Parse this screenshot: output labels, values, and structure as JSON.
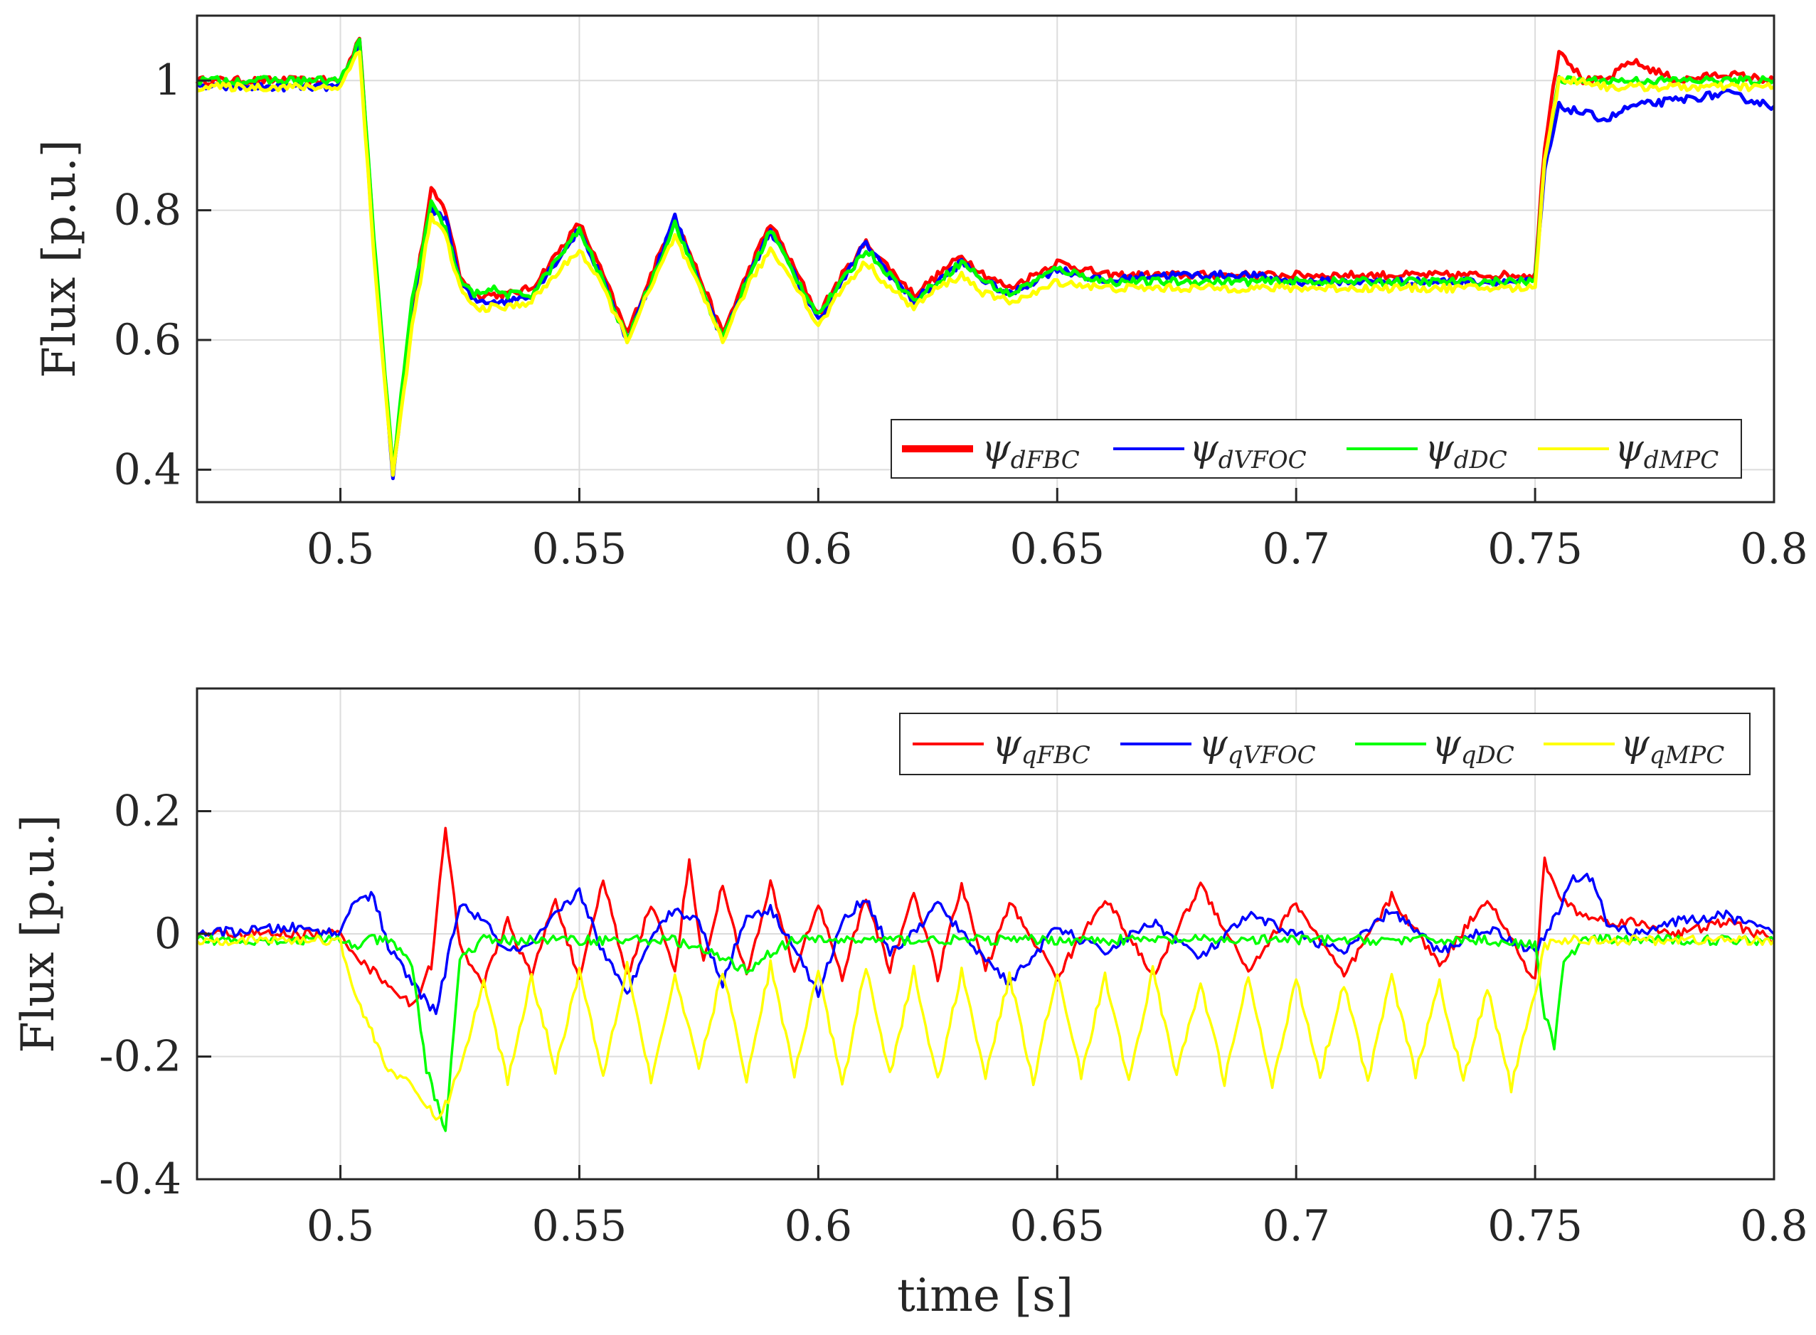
{
  "chart_data": [
    {
      "type": "line",
      "panel": "top",
      "title": "",
      "xlabel": "",
      "ylabel": "Flux [p.u.]",
      "xlim": [
        0.47,
        0.8
      ],
      "ylim": [
        0.35,
        1.1
      ],
      "xticks": [
        0.5,
        0.55,
        0.6,
        0.65,
        0.7,
        0.75,
        0.8
      ],
      "xtick_labels": [
        "0.5",
        "0.55",
        "0.6",
        "0.65",
        "0.7",
        "0.75",
        "0.8"
      ],
      "yticks": [
        0.4,
        0.6,
        0.8,
        1.0
      ],
      "ytick_labels": [
        "0.4",
        "0.6",
        "0.8",
        "1"
      ],
      "grid": true,
      "legend_position": "bottom-right",
      "series": [
        {
          "name": "ψdFBC",
          "sym": "ψ",
          "sub": "dFBC",
          "color": "#ff0000",
          "legend_width": "thick",
          "x": [
            0.47,
            0.49,
            0.5,
            0.502,
            0.504,
            0.507,
            0.511,
            0.515,
            0.519,
            0.522,
            0.525,
            0.528,
            0.531,
            0.535,
            0.54,
            0.545,
            0.55,
            0.555,
            0.56,
            0.565,
            0.57,
            0.575,
            0.58,
            0.585,
            0.59,
            0.595,
            0.6,
            0.605,
            0.61,
            0.615,
            0.62,
            0.625,
            0.63,
            0.635,
            0.64,
            0.645,
            0.65,
            0.66,
            0.67,
            0.68,
            0.69,
            0.7,
            0.72,
            0.74,
            0.75,
            0.752,
            0.755,
            0.76,
            0.765,
            0.77,
            0.78,
            0.79,
            0.8
          ],
          "y": [
            1.0,
            1.0,
            1.0,
            1.03,
            1.07,
            0.75,
            0.4,
            0.65,
            0.83,
            0.8,
            0.7,
            0.67,
            0.67,
            0.67,
            0.68,
            0.73,
            0.78,
            0.7,
            0.61,
            0.7,
            0.79,
            0.7,
            0.61,
            0.7,
            0.78,
            0.71,
            0.64,
            0.7,
            0.75,
            0.71,
            0.67,
            0.7,
            0.73,
            0.7,
            0.68,
            0.7,
            0.72,
            0.7,
            0.7,
            0.7,
            0.7,
            0.7,
            0.7,
            0.7,
            0.7,
            0.9,
            1.05,
            1.0,
            1.0,
            1.03,
            1.0,
            1.01,
            1.0
          ]
        },
        {
          "name": "ψdVFOC",
          "sym": "ψ",
          "sub": "dVFOC",
          "color": "#0000ff",
          "legend_width": "thin",
          "x": [
            0.47,
            0.49,
            0.5,
            0.502,
            0.504,
            0.507,
            0.511,
            0.515,
            0.519,
            0.522,
            0.525,
            0.528,
            0.531,
            0.535,
            0.54,
            0.545,
            0.55,
            0.555,
            0.56,
            0.565,
            0.57,
            0.575,
            0.58,
            0.585,
            0.59,
            0.595,
            0.6,
            0.605,
            0.61,
            0.615,
            0.62,
            0.625,
            0.63,
            0.635,
            0.64,
            0.645,
            0.65,
            0.66,
            0.67,
            0.68,
            0.69,
            0.7,
            0.72,
            0.74,
            0.75,
            0.752,
            0.755,
            0.76,
            0.765,
            0.77,
            0.78,
            0.79,
            0.8
          ],
          "y": [
            0.99,
            0.99,
            0.99,
            1.02,
            1.06,
            0.74,
            0.39,
            0.63,
            0.8,
            0.79,
            0.69,
            0.66,
            0.66,
            0.66,
            0.67,
            0.72,
            0.77,
            0.69,
            0.6,
            0.69,
            0.79,
            0.69,
            0.6,
            0.69,
            0.77,
            0.7,
            0.63,
            0.69,
            0.75,
            0.7,
            0.66,
            0.69,
            0.72,
            0.69,
            0.67,
            0.69,
            0.71,
            0.69,
            0.7,
            0.7,
            0.7,
            0.69,
            0.69,
            0.69,
            0.69,
            0.86,
            0.96,
            0.95,
            0.94,
            0.96,
            0.97,
            0.98,
            0.96
          ]
        },
        {
          "name": "ψdDC",
          "sym": "ψ",
          "sub": "dDC",
          "color": "#00ff00",
          "legend_width": "thin",
          "x": [
            0.47,
            0.49,
            0.5,
            0.502,
            0.504,
            0.507,
            0.511,
            0.515,
            0.519,
            0.522,
            0.525,
            0.528,
            0.531,
            0.535,
            0.54,
            0.545,
            0.55,
            0.555,
            0.56,
            0.565,
            0.57,
            0.575,
            0.58,
            0.585,
            0.59,
            0.595,
            0.6,
            0.605,
            0.61,
            0.615,
            0.62,
            0.625,
            0.63,
            0.635,
            0.64,
            0.645,
            0.65,
            0.66,
            0.67,
            0.68,
            0.69,
            0.7,
            0.72,
            0.74,
            0.75,
            0.752,
            0.755,
            0.76,
            0.765,
            0.77,
            0.78,
            0.79,
            0.8
          ],
          "y": [
            1.0,
            1.0,
            1.0,
            1.03,
            1.06,
            0.76,
            0.4,
            0.66,
            0.81,
            0.77,
            0.69,
            0.67,
            0.68,
            0.67,
            0.67,
            0.72,
            0.77,
            0.69,
            0.6,
            0.69,
            0.78,
            0.69,
            0.6,
            0.69,
            0.77,
            0.7,
            0.64,
            0.69,
            0.74,
            0.7,
            0.66,
            0.69,
            0.72,
            0.69,
            0.67,
            0.69,
            0.71,
            0.69,
            0.69,
            0.69,
            0.69,
            0.69,
            0.69,
            0.69,
            0.69,
            0.88,
            1.0,
            1.0,
            1.0,
            1.0,
            1.0,
            1.0,
            1.0
          ]
        },
        {
          "name": "ψdMPC",
          "sym": "ψ",
          "sub": "dMPC",
          "color": "#ffff00",
          "legend_width": "thin",
          "x": [
            0.47,
            0.49,
            0.5,
            0.502,
            0.504,
            0.507,
            0.511,
            0.515,
            0.519,
            0.522,
            0.525,
            0.528,
            0.531,
            0.535,
            0.54,
            0.545,
            0.55,
            0.555,
            0.56,
            0.565,
            0.57,
            0.575,
            0.58,
            0.585,
            0.59,
            0.595,
            0.6,
            0.605,
            0.61,
            0.615,
            0.62,
            0.625,
            0.63,
            0.635,
            0.64,
            0.645,
            0.65,
            0.66,
            0.67,
            0.68,
            0.69,
            0.7,
            0.72,
            0.74,
            0.75,
            0.752,
            0.755,
            0.76,
            0.765,
            0.77,
            0.78,
            0.79,
            0.8
          ],
          "y": [
            0.99,
            0.99,
            0.99,
            1.02,
            1.05,
            0.73,
            0.39,
            0.62,
            0.79,
            0.76,
            0.68,
            0.65,
            0.65,
            0.65,
            0.66,
            0.7,
            0.74,
            0.68,
            0.6,
            0.68,
            0.76,
            0.68,
            0.6,
            0.68,
            0.74,
            0.69,
            0.62,
            0.68,
            0.72,
            0.68,
            0.65,
            0.68,
            0.7,
            0.67,
            0.66,
            0.67,
            0.69,
            0.68,
            0.68,
            0.68,
            0.68,
            0.68,
            0.68,
            0.68,
            0.68,
            0.88,
            1.0,
            1.0,
            0.99,
            0.99,
            0.99,
            0.99,
            0.99
          ]
        }
      ]
    },
    {
      "type": "line",
      "panel": "bottom",
      "title": "",
      "xlabel": "time [s]",
      "ylabel": "Flux [p.u.]",
      "xlim": [
        0.47,
        0.8
      ],
      "ylim": [
        -0.4,
        0.4
      ],
      "xticks": [
        0.5,
        0.55,
        0.6,
        0.65,
        0.7,
        0.75,
        0.8
      ],
      "xtick_labels": [
        "0.5",
        "0.55",
        "0.6",
        "0.65",
        "0.7",
        "0.75",
        "0.8"
      ],
      "yticks": [
        -0.4,
        -0.2,
        0,
        0.2
      ],
      "ytick_labels": [
        "-0.4",
        "-0.2",
        "0",
        "0.2"
      ],
      "grid": true,
      "legend_position": "top-right",
      "series": [
        {
          "name": "ψqFBC",
          "sym": "ψ",
          "sub": "qFBC",
          "color": "#ff0000",
          "legend_width": "thin",
          "x": [
            0.47,
            0.5,
            0.505,
            0.51,
            0.515,
            0.519,
            0.522,
            0.525,
            0.53,
            0.535,
            0.54,
            0.545,
            0.55,
            0.555,
            0.56,
            0.565,
            0.57,
            0.573,
            0.576,
            0.58,
            0.585,
            0.59,
            0.595,
            0.6,
            0.605,
            0.61,
            0.615,
            0.62,
            0.625,
            0.63,
            0.635,
            0.64,
            0.65,
            0.66,
            0.67,
            0.68,
            0.69,
            0.7,
            0.71,
            0.72,
            0.73,
            0.74,
            0.75,
            0.752,
            0.755,
            0.76,
            0.765,
            0.77,
            0.78,
            0.79,
            0.8
          ],
          "y": [
            0.0,
            0.0,
            -0.05,
            -0.08,
            -0.12,
            -0.05,
            0.17,
            -0.02,
            -0.08,
            0.02,
            -0.07,
            0.06,
            -0.08,
            0.09,
            -0.07,
            0.05,
            -0.06,
            0.12,
            -0.05,
            0.08,
            -0.07,
            0.08,
            -0.06,
            0.05,
            -0.07,
            0.06,
            -0.06,
            0.07,
            -0.07,
            0.08,
            -0.06,
            0.05,
            -0.07,
            0.06,
            -0.07,
            0.08,
            -0.06,
            0.05,
            -0.07,
            0.06,
            -0.05,
            0.06,
            -0.08,
            0.12,
            0.06,
            0.03,
            0.02,
            0.02,
            0.0,
            0.02,
            -0.01
          ]
        },
        {
          "name": "ψqVFOC",
          "sym": "ψ",
          "sub": "qVFOC",
          "color": "#0000ff",
          "legend_width": "thin",
          "x": [
            0.47,
            0.49,
            0.5,
            0.503,
            0.507,
            0.51,
            0.515,
            0.52,
            0.525,
            0.53,
            0.535,
            0.54,
            0.545,
            0.55,
            0.555,
            0.56,
            0.565,
            0.57,
            0.575,
            0.58,
            0.585,
            0.59,
            0.595,
            0.6,
            0.605,
            0.61,
            0.615,
            0.62,
            0.625,
            0.63,
            0.635,
            0.64,
            0.65,
            0.66,
            0.67,
            0.68,
            0.69,
            0.7,
            0.71,
            0.72,
            0.73,
            0.74,
            0.75,
            0.755,
            0.758,
            0.762,
            0.765,
            0.77,
            0.78,
            0.79,
            0.8
          ],
          "y": [
            0.0,
            0.01,
            0.0,
            0.06,
            0.06,
            -0.02,
            -0.08,
            -0.13,
            0.05,
            0.02,
            -0.03,
            -0.02,
            0.03,
            0.07,
            -0.03,
            -0.1,
            0.0,
            0.04,
            0.02,
            -0.08,
            0.03,
            0.04,
            -0.02,
            -0.1,
            0.02,
            0.06,
            -0.03,
            0.0,
            0.05,
            0.0,
            -0.04,
            -0.08,
            0.01,
            -0.03,
            0.02,
            -0.04,
            0.03,
            0.0,
            -0.03,
            0.04,
            -0.03,
            0.01,
            -0.03,
            0.04,
            0.09,
            0.09,
            0.02,
            0.0,
            0.02,
            0.03,
            0.0
          ]
        },
        {
          "name": "ψqDC",
          "sym": "ψ",
          "sub": "qDC",
          "color": "#00ff00",
          "legend_width": "thin",
          "x": [
            0.47,
            0.5,
            0.503,
            0.506,
            0.51,
            0.515,
            0.518,
            0.522,
            0.525,
            0.53,
            0.55,
            0.57,
            0.58,
            0.585,
            0.59,
            0.595,
            0.6,
            0.65,
            0.7,
            0.74,
            0.75,
            0.752,
            0.754,
            0.756,
            0.76,
            0.78,
            0.8
          ],
          "y": [
            -0.01,
            -0.01,
            -0.02,
            -0.01,
            -0.01,
            -0.05,
            -0.22,
            -0.32,
            -0.04,
            -0.01,
            -0.01,
            -0.01,
            -0.04,
            -0.06,
            -0.03,
            -0.01,
            -0.01,
            -0.01,
            -0.01,
            -0.01,
            -0.02,
            -0.13,
            -0.18,
            -0.05,
            -0.01,
            -0.01,
            -0.01
          ]
        },
        {
          "name": "ψqMPC",
          "sym": "ψ",
          "sub": "qMPC",
          "color": "#ffff00",
          "legend_width": "thin",
          "x": [
            0.47,
            0.5,
            0.503,
            0.506,
            0.51,
            0.515,
            0.52,
            0.522,
            0.525,
            0.53,
            0.535,
            0.54,
            0.545,
            0.55,
            0.555,
            0.56,
            0.565,
            0.57,
            0.575,
            0.58,
            0.585,
            0.59,
            0.595,
            0.6,
            0.605,
            0.61,
            0.615,
            0.62,
            0.625,
            0.63,
            0.635,
            0.64,
            0.645,
            0.65,
            0.655,
            0.66,
            0.665,
            0.67,
            0.675,
            0.68,
            0.685,
            0.69,
            0.695,
            0.7,
            0.705,
            0.71,
            0.715,
            0.72,
            0.725,
            0.73,
            0.735,
            0.74,
            0.745,
            0.75,
            0.752,
            0.755,
            0.76,
            0.78,
            0.8
          ],
          "y": [
            -0.01,
            -0.01,
            -0.1,
            -0.15,
            -0.22,
            -0.25,
            -0.3,
            -0.28,
            -0.22,
            -0.08,
            -0.24,
            -0.07,
            -0.22,
            -0.06,
            -0.23,
            -0.05,
            -0.24,
            -0.07,
            -0.22,
            -0.06,
            -0.24,
            -0.05,
            -0.23,
            -0.06,
            -0.25,
            -0.05,
            -0.23,
            -0.06,
            -0.24,
            -0.06,
            -0.23,
            -0.07,
            -0.24,
            -0.06,
            -0.23,
            -0.07,
            -0.24,
            -0.06,
            -0.23,
            -0.08,
            -0.24,
            -0.07,
            -0.25,
            -0.07,
            -0.23,
            -0.08,
            -0.24,
            -0.07,
            -0.23,
            -0.08,
            -0.24,
            -0.09,
            -0.25,
            -0.1,
            -0.02,
            -0.01,
            -0.01,
            -0.01,
            -0.01
          ]
        }
      ]
    }
  ]
}
